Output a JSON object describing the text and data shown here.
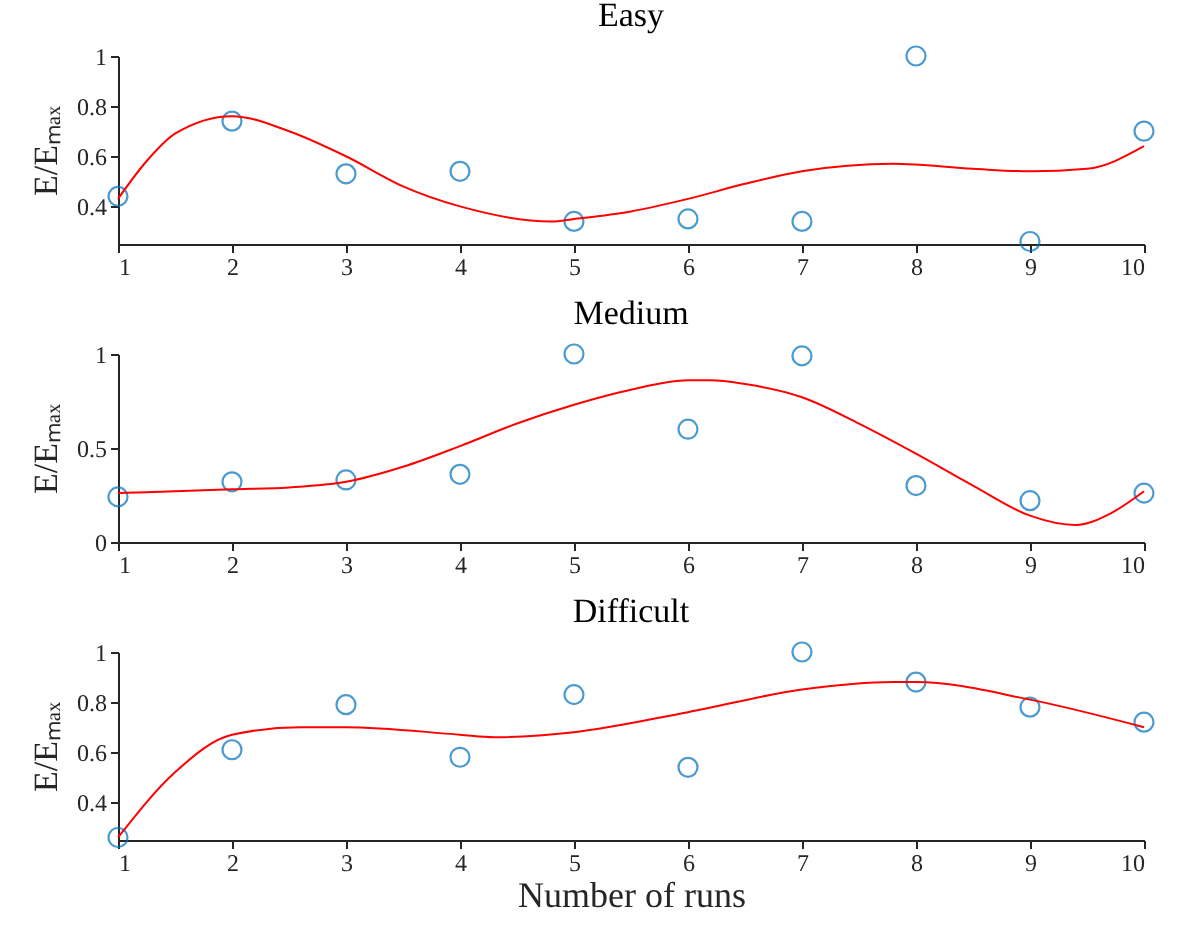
{
  "chart_data": [
    {
      "type": "scatter",
      "title": "Easy",
      "ylabel": "E/Eₘₐₓ",
      "xlim": [
        1,
        10
      ],
      "ylim": [
        0.25,
        1
      ],
      "xticks": [
        1,
        2,
        3,
        4,
        5,
        6,
        7,
        8,
        9,
        10
      ],
      "yticks": [
        0.4,
        0.6,
        0.8,
        1
      ],
      "grid": false,
      "series": [
        {
          "color": "#0072bd",
          "marker": "circle",
          "x": [
            1,
            2,
            3,
            4,
            5,
            6,
            7,
            8,
            9,
            10
          ],
          "values": [
            0.44,
            0.74,
            0.53,
            0.54,
            0.34,
            0.35,
            0.34,
            1,
            0.26,
            0.7
          ]
        },
        {
          "type": "line",
          "color": "#ff0000",
          "marker": "none",
          "line_style": "solid",
          "x": [
            1,
            1.25,
            1.5,
            2,
            2.5,
            3,
            3.5,
            4,
            4.8,
            5,
            5.5,
            6,
            6.5,
            7,
            7.8,
            8.5,
            9,
            9.5,
            10
          ],
          "values": [
            0.43,
            0.58,
            0.69,
            0.76,
            0.7,
            0.6,
            0.48,
            0.4,
            0.34,
            0.35,
            0.38,
            0.43,
            0.49,
            0.54,
            0.57,
            0.55,
            0.54,
            0.55,
            0.64
          ]
        }
      ]
    },
    {
      "type": "scatter",
      "title": "Medium",
      "ylabel": "E/Eₘₐₓ",
      "xlim": [
        1,
        10
      ],
      "ylim": [
        0,
        1
      ],
      "xticks": [
        1,
        2,
        3,
        4,
        5,
        6,
        7,
        8,
        9,
        10
      ],
      "yticks": [
        0,
        0.5,
        1
      ],
      "grid": false,
      "series": [
        {
          "color": "#0072bd",
          "marker": "circle",
          "x": [
            1,
            2,
            3,
            4,
            5,
            6,
            7,
            8,
            9,
            10
          ],
          "values": [
            0.24,
            0.32,
            0.33,
            0.36,
            1,
            0.6,
            0.99,
            0.3,
            0.22,
            0.26
          ]
        },
        {
          "type": "line",
          "color": "#ff0000",
          "marker": "none",
          "line_style": "solid",
          "x": [
            1,
            1.5,
            2,
            2.5,
            3,
            3.5,
            4,
            4.5,
            5,
            5.5,
            6,
            6.2,
            6.5,
            7,
            7.5,
            8,
            8.5,
            9,
            9.4,
            9.7,
            10
          ],
          "values": [
            0.26,
            0.27,
            0.28,
            0.29,
            0.32,
            0.4,
            0.51,
            0.63,
            0.73,
            0.81,
            0.86,
            0.86,
            0.84,
            0.77,
            0.63,
            0.47,
            0.3,
            0.14,
            0.09,
            0.15,
            0.27
          ]
        }
      ]
    },
    {
      "type": "scatter",
      "title": "Difficult",
      "xlabel": "Number of runs",
      "ylabel": "E/Eₘₐₓ",
      "xlim": [
        1,
        10
      ],
      "ylim": [
        0.25,
        1
      ],
      "xticks": [
        1,
        2,
        3,
        4,
        5,
        6,
        7,
        8,
        9,
        10
      ],
      "yticks": [
        0.4,
        0.6,
        0.8,
        1
      ],
      "grid": false,
      "series": [
        {
          "color": "#0072bd",
          "marker": "circle",
          "x": [
            1,
            2,
            3,
            4,
            5,
            6,
            7,
            8,
            9,
            10
          ],
          "values": [
            0.26,
            0.61,
            0.79,
            0.58,
            0.83,
            0.54,
            1,
            0.88,
            0.78,
            0.72
          ]
        },
        {
          "type": "line",
          "color": "#ff0000",
          "marker": "none",
          "line_style": "solid",
          "x": [
            1,
            1.5,
            2,
            2.6,
            3,
            4,
            4.3,
            5,
            6,
            7,
            7.8,
            8,
            9,
            10
          ],
          "values": [
            0.26,
            0.52,
            0.67,
            0.7,
            0.7,
            0.67,
            0.66,
            0.68,
            0.76,
            0.85,
            0.88,
            0.88,
            0.81,
            0.7
          ]
        }
      ]
    }
  ]
}
